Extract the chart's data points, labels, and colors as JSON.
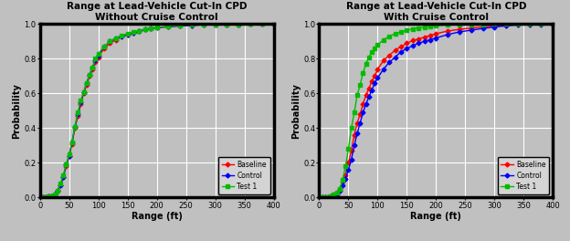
{
  "title1": "Range at Lead-Vehicle Cut-In CPD\nWithout Cruise Control",
  "title2": "Range at Lead-Vehicle Cut-In CPD\nWith Cruise Control",
  "xlabel": "Range (ft)",
  "ylabel": "Probability",
  "xlim": [
    0,
    400
  ],
  "ylim": [
    0.0,
    1.0
  ],
  "xticks": [
    0,
    50,
    100,
    150,
    200,
    250,
    300,
    350,
    400
  ],
  "yticks": [
    0.0,
    0.2,
    0.4,
    0.6,
    0.8,
    1.0
  ],
  "legend_labels": [
    "Baseline",
    "Control",
    "Test 1"
  ],
  "colors": [
    "#FF0000",
    "#0000FF",
    "#00BB00"
  ],
  "bg_color": "#C0C0C0",
  "fig_bg": "#C0C0C0",
  "panel_bg": "#FFFFFF",
  "plot1": {
    "baseline_x": [
      0,
      5,
      10,
      15,
      20,
      25,
      30,
      35,
      40,
      45,
      50,
      55,
      60,
      65,
      70,
      75,
      80,
      85,
      90,
      95,
      100,
      110,
      120,
      130,
      140,
      150,
      160,
      170,
      180,
      190,
      200,
      220,
      240,
      260,
      280,
      300,
      320,
      340,
      360,
      380,
      400
    ],
    "baseline_y": [
      0.0,
      0.0,
      0.0,
      0.01,
      0.01,
      0.02,
      0.04,
      0.07,
      0.12,
      0.18,
      0.24,
      0.31,
      0.4,
      0.47,
      0.54,
      0.6,
      0.65,
      0.7,
      0.74,
      0.78,
      0.81,
      0.86,
      0.89,
      0.91,
      0.93,
      0.94,
      0.95,
      0.96,
      0.97,
      0.975,
      0.98,
      0.985,
      0.99,
      0.993,
      0.996,
      0.997,
      0.998,
      0.999,
      1.0,
      1.0,
      1.0
    ],
    "control_x": [
      0,
      5,
      10,
      15,
      20,
      25,
      30,
      35,
      40,
      45,
      50,
      55,
      60,
      65,
      70,
      75,
      80,
      85,
      90,
      95,
      100,
      110,
      120,
      130,
      140,
      150,
      160,
      170,
      180,
      190,
      200,
      220,
      240,
      260,
      280,
      300,
      320,
      340,
      360,
      380,
      400
    ],
    "control_y": [
      0.0,
      0.0,
      0.0,
      0.01,
      0.01,
      0.02,
      0.04,
      0.07,
      0.12,
      0.19,
      0.24,
      0.32,
      0.41,
      0.48,
      0.55,
      0.61,
      0.66,
      0.71,
      0.75,
      0.79,
      0.82,
      0.87,
      0.9,
      0.92,
      0.93,
      0.94,
      0.95,
      0.96,
      0.97,
      0.975,
      0.98,
      0.985,
      0.99,
      0.993,
      0.996,
      0.997,
      0.998,
      0.999,
      1.0,
      1.0,
      1.0
    ],
    "test1_x": [
      0,
      5,
      10,
      15,
      20,
      25,
      30,
      35,
      40,
      45,
      50,
      55,
      60,
      65,
      70,
      75,
      80,
      85,
      90,
      95,
      100,
      110,
      120,
      130,
      140,
      150,
      160,
      170,
      180,
      190,
      200,
      220,
      240,
      260,
      280,
      300,
      320,
      340,
      360,
      380,
      400
    ],
    "test1_y": [
      0.0,
      0.0,
      0.0,
      0.01,
      0.01,
      0.02,
      0.04,
      0.08,
      0.13,
      0.19,
      0.25,
      0.32,
      0.41,
      0.49,
      0.56,
      0.61,
      0.66,
      0.71,
      0.75,
      0.8,
      0.83,
      0.87,
      0.9,
      0.92,
      0.935,
      0.945,
      0.955,
      0.96,
      0.97,
      0.975,
      0.98,
      0.988,
      0.992,
      0.995,
      0.997,
      0.998,
      0.999,
      0.999,
      1.0,
      1.0,
      1.0
    ]
  },
  "plot2": {
    "baseline_x": [
      0,
      5,
      10,
      15,
      20,
      25,
      30,
      35,
      40,
      45,
      50,
      55,
      60,
      65,
      70,
      75,
      80,
      85,
      90,
      95,
      100,
      110,
      120,
      130,
      140,
      150,
      160,
      170,
      180,
      190,
      200,
      220,
      240,
      260,
      280,
      300,
      320,
      340,
      360,
      380,
      400
    ],
    "baseline_y": [
      0.0,
      0.0,
      0.0,
      0.005,
      0.01,
      0.02,
      0.03,
      0.05,
      0.09,
      0.13,
      0.2,
      0.27,
      0.36,
      0.43,
      0.48,
      0.54,
      0.59,
      0.63,
      0.67,
      0.7,
      0.74,
      0.79,
      0.82,
      0.85,
      0.87,
      0.89,
      0.905,
      0.915,
      0.925,
      0.935,
      0.945,
      0.96,
      0.97,
      0.977,
      0.984,
      0.99,
      0.994,
      0.997,
      0.999,
      1.0,
      1.0
    ],
    "control_x": [
      0,
      5,
      10,
      15,
      20,
      25,
      30,
      35,
      40,
      45,
      50,
      55,
      60,
      65,
      70,
      75,
      80,
      85,
      90,
      95,
      100,
      110,
      120,
      130,
      140,
      150,
      160,
      170,
      180,
      190,
      200,
      220,
      240,
      260,
      280,
      300,
      320,
      340,
      360,
      380,
      400
    ],
    "control_y": [
      0.0,
      0.0,
      0.0,
      0.005,
      0.01,
      0.015,
      0.02,
      0.04,
      0.07,
      0.11,
      0.16,
      0.22,
      0.3,
      0.37,
      0.43,
      0.49,
      0.54,
      0.58,
      0.62,
      0.66,
      0.69,
      0.74,
      0.78,
      0.81,
      0.84,
      0.86,
      0.875,
      0.89,
      0.9,
      0.91,
      0.92,
      0.94,
      0.955,
      0.965,
      0.975,
      0.983,
      0.99,
      0.995,
      0.998,
      0.999,
      1.0
    ],
    "test1_x": [
      0,
      5,
      10,
      15,
      20,
      25,
      30,
      35,
      40,
      45,
      50,
      55,
      60,
      65,
      70,
      75,
      80,
      85,
      90,
      95,
      100,
      110,
      120,
      130,
      140,
      150,
      160,
      170,
      180,
      190,
      200,
      220,
      240,
      260,
      280,
      300,
      320,
      340,
      360,
      380,
      400
    ],
    "test1_y": [
      0.0,
      0.0,
      0.0,
      0.005,
      0.01,
      0.02,
      0.03,
      0.05,
      0.1,
      0.18,
      0.28,
      0.4,
      0.49,
      0.59,
      0.65,
      0.72,
      0.77,
      0.81,
      0.84,
      0.86,
      0.88,
      0.91,
      0.93,
      0.945,
      0.955,
      0.965,
      0.972,
      0.978,
      0.982,
      0.986,
      0.99,
      0.995,
      0.997,
      0.998,
      0.999,
      1.0,
      1.0,
      1.0,
      1.0,
      1.0,
      1.0
    ]
  }
}
